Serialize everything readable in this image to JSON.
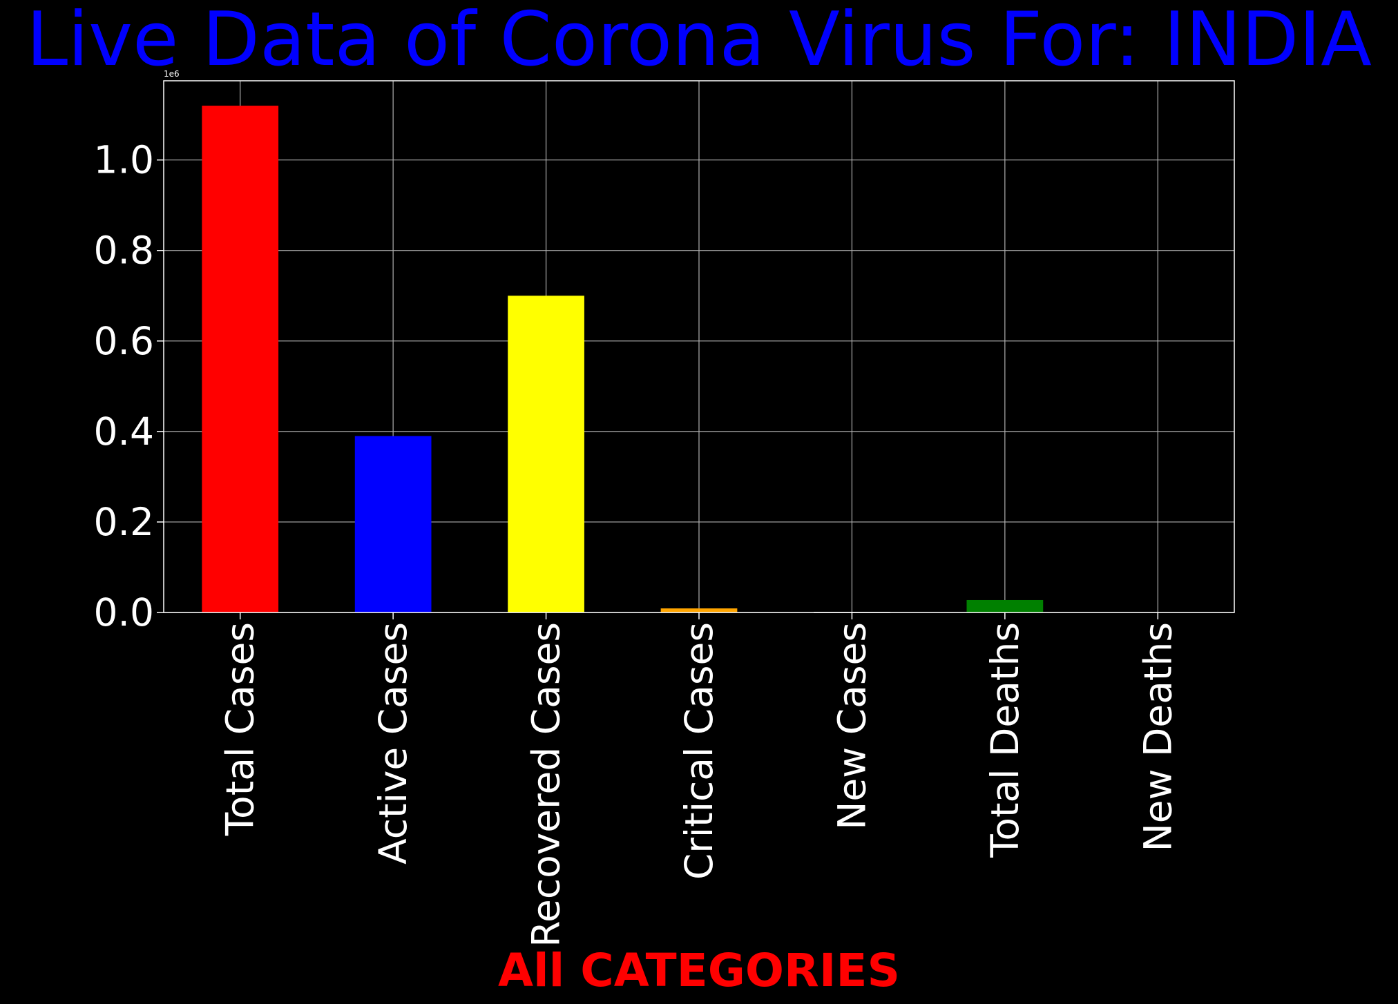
{
  "chart_data": {
    "type": "bar",
    "title": "Live Data of Corona Virus For: INDIA",
    "xlabel": "All CATEGORIES",
    "ylabel": "",
    "offset_label": "1e6",
    "categories": [
      "Total Cases",
      "Active Cases",
      "Recovered Cases",
      "Critical Cases",
      "New Cases",
      "Total Deaths",
      "New Deaths"
    ],
    "values": [
      1120000,
      390000,
      700000,
      9000,
      1500,
      27500,
      500
    ],
    "colors": [
      "#ff0000",
      "#0000ff",
      "#ffff00",
      "#ffa500",
      "#ffffff",
      "#008000",
      "#000000"
    ],
    "ylim": [
      0,
      1175000
    ],
    "yticks": [
      0,
      200000,
      400000,
      600000,
      800000,
      1000000
    ],
    "ytick_labels": [
      "0.0",
      "0.2",
      "0.4",
      "0.6",
      "0.8",
      "1.0"
    ],
    "grid": true,
    "title_color": "#0000ff",
    "xlabel_color": "#ff0000",
    "tick_color": "#ffffff",
    "background": "#000000"
  }
}
